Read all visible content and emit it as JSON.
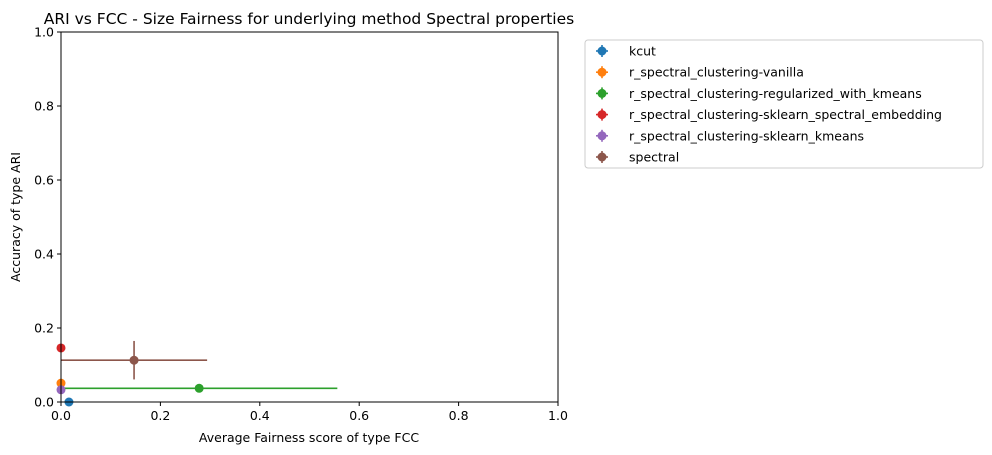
{
  "chart_data": {
    "type": "scatter",
    "title": "ARI vs FCC - Size Fairness for underlying method Spectral properties",
    "xlabel": "Average Fairness score of type FCC",
    "ylabel": "Accuracy of type ARI",
    "xlim": [
      0,
      1
    ],
    "ylim": [
      0,
      1
    ],
    "x_ticks": [
      "0.0",
      "0.2",
      "0.4",
      "0.6",
      "0.8",
      "1.0"
    ],
    "y_ticks": [
      "0.0",
      "0.2",
      "0.4",
      "0.6",
      "0.8",
      "1.0"
    ],
    "grid": false,
    "legend_position": "outside upper right",
    "series": [
      {
        "name": "kcut",
        "color": "#1f77b4",
        "x": 0.016,
        "y": 0.0,
        "xerr": 0.0,
        "yerr": 0.0
      },
      {
        "name": "r_spectral_clustering-vanilla",
        "color": "#ff7f0e",
        "x": 0.0,
        "y": 0.051,
        "xerr": 0.0,
        "yerr": 0.0
      },
      {
        "name": "r_spectral_clustering-regularized_with_kmeans",
        "color": "#2ca02c",
        "x": 0.278,
        "y": 0.037,
        "xerr": 0.278,
        "yerr": 0.0
      },
      {
        "name": "r_spectral_clustering-sklearn_spectral_embedding",
        "color": "#d62728",
        "x": 0.0,
        "y": 0.146,
        "xerr": 0.0,
        "yerr": 0.0
      },
      {
        "name": "r_spectral_clustering-sklearn_kmeans",
        "color": "#9467bd",
        "x": 0.0,
        "y": 0.033,
        "xerr": 0.0,
        "yerr": 0.0
      },
      {
        "name": "spectral",
        "color": "#8c564b",
        "x": 0.147,
        "y": 0.113,
        "xerr": 0.147,
        "yerr": 0.052
      }
    ]
  }
}
